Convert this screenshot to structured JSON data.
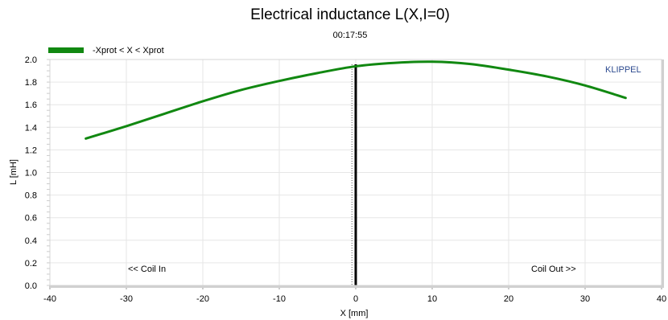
{
  "chart_data": {
    "type": "line",
    "title": "Electrical inductance L(X,I=0)",
    "subtitle": "00:17:55",
    "xlabel": "X [mm]",
    "ylabel": "L [mH]",
    "xlim": [
      -40,
      40
    ],
    "ylim": [
      0.0,
      2.0
    ],
    "x_ticks": [
      -40,
      -30,
      -20,
      -10,
      0,
      10,
      20,
      30,
      40
    ],
    "y_ticks": [
      "0.0",
      "0.2",
      "0.4",
      "0.6",
      "0.8",
      "1.0",
      "1.2",
      "1.4",
      "1.6",
      "1.8",
      "2.0"
    ],
    "grid": true,
    "legend_position": "top-left",
    "series": [
      {
        "name": "-Xprot < X < Xprot",
        "color": "#118811",
        "x": [
          -35.3,
          -30,
          -25,
          -20,
          -15,
          -10,
          -5,
          0,
          5,
          10,
          15,
          20,
          25,
          30,
          35.3
        ],
        "y": [
          1.3,
          1.41,
          1.52,
          1.63,
          1.73,
          1.81,
          1.88,
          1.94,
          1.97,
          1.98,
          1.96,
          1.91,
          1.85,
          1.77,
          1.66
        ]
      }
    ],
    "markers": {
      "solid_vertical_at": 0,
      "dotted_vertical_at": -0.5
    },
    "annotations": {
      "left": "<< Coil In",
      "right": "Coil Out >>",
      "brand": "KLIPPEL"
    }
  }
}
